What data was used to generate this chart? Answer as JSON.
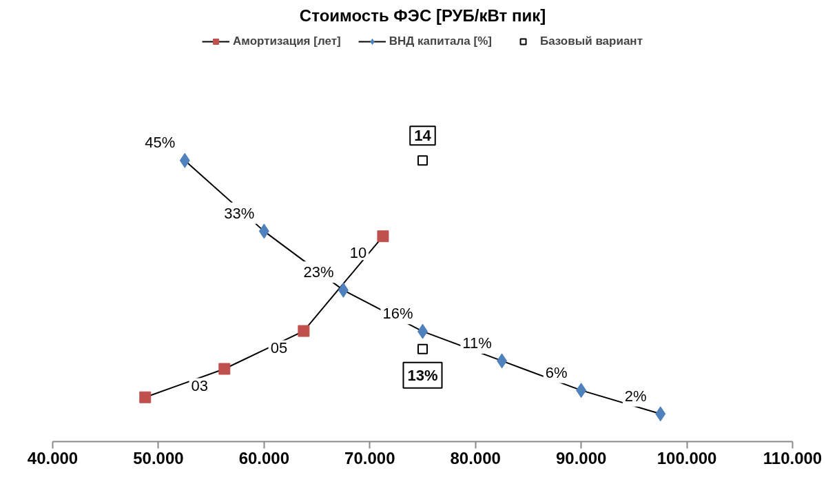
{
  "chart_data": {
    "type": "line",
    "title": "Стоимость ФЭС [РУБ/кВт пик]",
    "legend": "top",
    "grid": false,
    "line_style": "solid",
    "tick_labels": "x",
    "xlim": [
      40000,
      110000
    ],
    "xticks": [
      {
        "value": 40000,
        "label": "40.000"
      },
      {
        "value": 50000,
        "label": "50.000"
      },
      {
        "value": 60000,
        "label": "60.000"
      },
      {
        "value": 70000,
        "label": "70.000"
      },
      {
        "value": 80000,
        "label": "80.000"
      },
      {
        "value": 90000,
        "label": "90.000"
      },
      {
        "value": 100000,
        "label": "100.000"
      },
      {
        "value": 110000,
        "label": "110.000"
      }
    ],
    "series": [
      {
        "name": "Амортизация [лет]",
        "color": "#c0504d",
        "marker": "square",
        "axis": "y2",
        "x": [
          48750,
          56250,
          63750,
          71250
        ],
        "values": [
          1.5,
          3,
          5,
          10
        ],
        "value_labels": [
          null,
          "03",
          "05",
          "10"
        ]
      },
      {
        "name": "ВНД капитала [%]",
        "color": "#4f81bd",
        "marker": "diamond",
        "x": [
          52500,
          60000,
          67500,
          75000,
          82500,
          90000,
          97500
        ],
        "values": [
          45,
          33,
          23,
          16,
          11,
          6,
          2
        ],
        "value_labels": [
          "45%",
          "33%",
          "23%",
          "16%",
          "11%",
          "6%",
          "2%"
        ]
      },
      {
        "name": "Базовый вариант",
        "type": "scatter",
        "color": "#000000",
        "marker": "square",
        "axis": "y2",
        "x": [
          75000
        ],
        "values": [
          14
        ],
        "value_labels": [
          "14"
        ]
      },
      {
        "type": "scatter",
        "color": "#000000",
        "marker": "square",
        "x": [
          75000
        ],
        "values": [
          13
        ],
        "value_labels": [
          "13%"
        ]
      }
    ]
  }
}
